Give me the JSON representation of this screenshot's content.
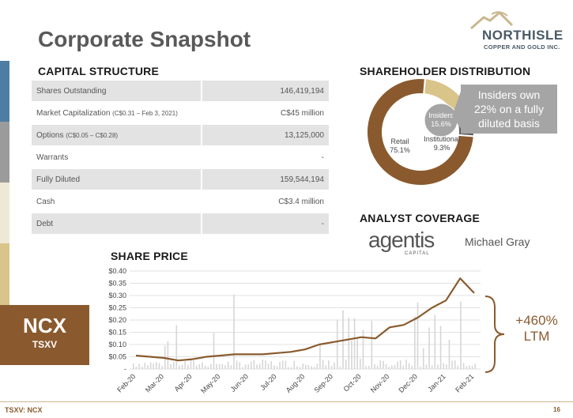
{
  "title": "Corporate Snapshot",
  "logo": {
    "name": "NORTHISLE",
    "subtitle": "COPPER AND GOLD INC."
  },
  "capital_structure": {
    "heading": "CAPITAL STRUCTURE",
    "rows": [
      {
        "label": "Shares Outstanding",
        "note": "",
        "value": "146,419,194"
      },
      {
        "label": "Market Capitalization",
        "note": "(C$0.31 – Feb 3, 2021)",
        "value": "C$45 million"
      },
      {
        "label": "Options",
        "note": "(C$0.05 – C$0.28)",
        "value": "13,125,000"
      },
      {
        "label": "Warrants",
        "note": "",
        "value": "-"
      },
      {
        "label": "Fully Diluted",
        "note": "",
        "value": "159,544,194"
      },
      {
        "label": "Cash",
        "note": "",
        "value": "C$3.4 million"
      },
      {
        "label": "Debt",
        "note": "",
        "value": "-"
      }
    ]
  },
  "shareholder_distribution": {
    "heading": "SHAREHOLDER DISTRIBUTION",
    "callout": "Insiders own 22% on a fully diluted basis"
  },
  "analyst_coverage": {
    "heading": "ANALYST COVERAGE",
    "firm": "agentis",
    "firm_sub": "CAPITAL",
    "analyst": "Michael Gray"
  },
  "share_price": {
    "heading": "SHARE PRICE",
    "ticker": "NCX",
    "exchange": "TSXV",
    "gain": "+460%",
    "gain_period": "LTM"
  },
  "footer": {
    "left": "TSXV: NCX",
    "page": "16"
  },
  "colors": {
    "brown": "#8a5a2e",
    "tan": "#d9c48a",
    "grey": "#a5a5a5",
    "dark_grey": "#666666",
    "accent_blue": "#4e7da3"
  },
  "chart_data": [
    {
      "type": "pie",
      "title": "SHAREHOLDER DISTRIBUTION",
      "slices": [
        {
          "name": "Retail",
          "value": 75.1,
          "color": "#8a5a2e"
        },
        {
          "name": "Insiders",
          "value": 15.6,
          "color": "#d9c48a"
        },
        {
          "name": "Institutional",
          "value": 9.3,
          "color": "#5f5f5f"
        }
      ],
      "labels": [
        {
          "name": "Retail",
          "text": "75.1%"
        },
        {
          "name": "Insiders",
          "text": "15.6%"
        },
        {
          "name": "Institutional",
          "text": "9.3%"
        }
      ]
    },
    {
      "type": "line",
      "title": "SHARE PRICE",
      "ylim": [
        0,
        0.4
      ],
      "y_ticks": [
        "-",
        "$0.05",
        "$0.10",
        "$0.15",
        "$0.20",
        "$0.25",
        "$0.30",
        "$0.35",
        "$0.40"
      ],
      "y_tick_values": [
        0,
        0.05,
        0.1,
        0.15,
        0.2,
        0.25,
        0.3,
        0.35,
        0.4
      ],
      "x_ticks": [
        "Feb-20",
        "Mar-20",
        "Apr-20",
        "May-20",
        "Jun-20",
        "Jul-20",
        "Aug-20",
        "Sep-20",
        "Oct-20",
        "Nov-20",
        "Dec-20",
        "Jan-21",
        "Feb-21"
      ],
      "grid": true,
      "series": [
        {
          "color": "#8a5a2e",
          "x": [
            "Feb-20",
            "Feb-20",
            "Mar-20",
            "Mar-20",
            "Apr-20",
            "Apr-20",
            "May-20",
            "May-20",
            "Jun-20",
            "Jun-20",
            "Jul-20",
            "Jul-20",
            "Aug-20",
            "Aug-20",
            "Sep-20",
            "Sep-20",
            "Oct-20",
            "Oct-20",
            "Nov-20",
            "Nov-20",
            "Dec-20",
            "Dec-20",
            "Jan-21",
            "Jan-21",
            "Feb-21"
          ],
          "values": [
            0.055,
            0.05,
            0.045,
            0.035,
            0.04,
            0.05,
            0.055,
            0.06,
            0.06,
            0.06,
            0.065,
            0.07,
            0.08,
            0.1,
            0.11,
            0.12,
            0.13,
            0.125,
            0.17,
            0.18,
            0.21,
            0.25,
            0.28,
            0.37,
            0.31
          ]
        }
      ]
    }
  ]
}
